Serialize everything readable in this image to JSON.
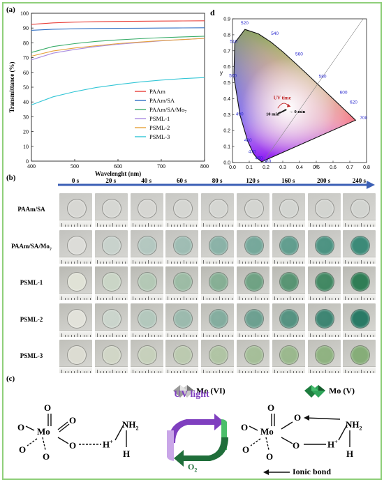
{
  "panel_labels": {
    "a": "(a)",
    "b": "(b)",
    "c": "(c)",
    "d": "d"
  },
  "chart_data": [
    {
      "type": "line",
      "panel": "a",
      "xlabel": "Wavelenght (nm)",
      "ylabel": "Transmittance (%)",
      "xlim": [
        400,
        800
      ],
      "ylim": [
        0,
        100
      ],
      "xticks": [
        "400",
        "500",
        "600",
        "700",
        "800"
      ],
      "yticks": [
        "0",
        "10",
        "20",
        "30",
        "40",
        "50",
        "60",
        "70",
        "80",
        "90",
        "100"
      ],
      "legend_position": "bottom-right",
      "x": [
        400,
        450,
        500,
        550,
        600,
        650,
        700,
        750,
        800
      ],
      "series": [
        {
          "name": "PAAm",
          "color": "#e8403a",
          "values": [
            92.5,
            93.5,
            94.0,
            94.3,
            94.5,
            94.6,
            94.7,
            94.8,
            94.9
          ]
        },
        {
          "name": "PAAm/SA",
          "color": "#2f6fc4",
          "values": [
            88.5,
            89.2,
            89.5,
            89.7,
            89.8,
            89.9,
            90.0,
            90.1,
            90.2
          ]
        },
        {
          "name": "PAAm/SA/Mo7",
          "color": "#3aad6a",
          "values": [
            73.5,
            77.5,
            79.5,
            81.0,
            82.0,
            82.8,
            83.5,
            84.0,
            84.5
          ]
        },
        {
          "name": "PSML-1",
          "color": "#a98be0",
          "values": [
            68.5,
            73.0,
            75.5,
            77.5,
            79.0,
            80.2,
            81.3,
            82.2,
            83.0
          ]
        },
        {
          "name": "PSML-2",
          "color": "#e6a23c",
          "values": [
            71.0,
            74.5,
            76.5,
            78.0,
            79.5,
            80.5,
            81.5,
            82.2,
            83.0
          ]
        },
        {
          "name": "PSML-3",
          "color": "#33c6d6",
          "values": [
            38.0,
            43.5,
            47.0,
            49.8,
            51.8,
            53.5,
            54.8,
            55.8,
            56.5
          ]
        }
      ]
    },
    {
      "type": "scatter",
      "panel": "d",
      "xlabel": "x",
      "ylabel": "y",
      "xlim": [
        0.0,
        0.8
      ],
      "ylim": [
        0.0,
        0.9
      ],
      "xticks": [
        "0.0",
        "0.1",
        "0.2",
        "0.3",
        "0.4",
        "0.5",
        "0.6",
        "0.7",
        "0.8"
      ],
      "yticks": [
        "0.0",
        "0.1",
        "0.2",
        "0.3",
        "0.4",
        "0.5",
        "0.6",
        "0.7",
        "0.8",
        "0.9"
      ],
      "wavelength_labels": [
        "460",
        "470",
        "480",
        "490",
        "500",
        "510",
        "520",
        "540",
        "560",
        "580",
        "600",
        "620",
        "700",
        "380"
      ],
      "annotation_title": "UV time",
      "annotation_start": "0 min",
      "annotation_end": "10 min",
      "points_x": [
        0.318,
        0.312,
        0.305,
        0.298,
        0.29,
        0.283,
        0.276
      ],
      "points_y": [
        0.33,
        0.327,
        0.323,
        0.319,
        0.315,
        0.312,
        0.309
      ]
    }
  ],
  "panel_b": {
    "times": [
      "0 s",
      "20 s",
      "40 s",
      "60 s",
      "80 s",
      "120 s",
      "160 s",
      "200 s",
      "240 s"
    ],
    "rows": [
      {
        "label": "PAAm/SA",
        "bg": "#c8c8c4",
        "start": "#d7d7d3",
        "end": "#d2d4d0"
      },
      {
        "label": "PAAm/SA/Mo",
        "sub": "7",
        "bg": "#c2c2be",
        "start": "#dcdcd8",
        "end": "#3c8a78"
      },
      {
        "label": "PSML-1",
        "bg": "#b9b9b3",
        "start": "#e0e2d6",
        "end": "#2f7d55"
      },
      {
        "label": "PSML-2",
        "bg": "#bdbdb7",
        "start": "#e2e2da",
        "end": "#2a7a66"
      },
      {
        "label": "PSML-3",
        "bg": "#c0c0ba",
        "start": "#dcdcd2",
        "end": "#86ad78"
      }
    ]
  },
  "panel_c": {
    "mo6_label": "Mo (VI)",
    "mo5_label": "Mo (V)",
    "uv_label": "UV light",
    "o2_label": "O",
    "o2_sub": "2",
    "ionic_label": "Ionic bond",
    "atoms": {
      "mo": "Mo",
      "o": "O",
      "n": "N",
      "h": "H",
      "h2": "2",
      "hplus": "H",
      "plus": "+"
    },
    "colors": {
      "purple": "#7f3fbf",
      "green": "#1f6e3a",
      "light_purple": "#c9a6e8",
      "light_green": "#4bbf6a"
    }
  }
}
